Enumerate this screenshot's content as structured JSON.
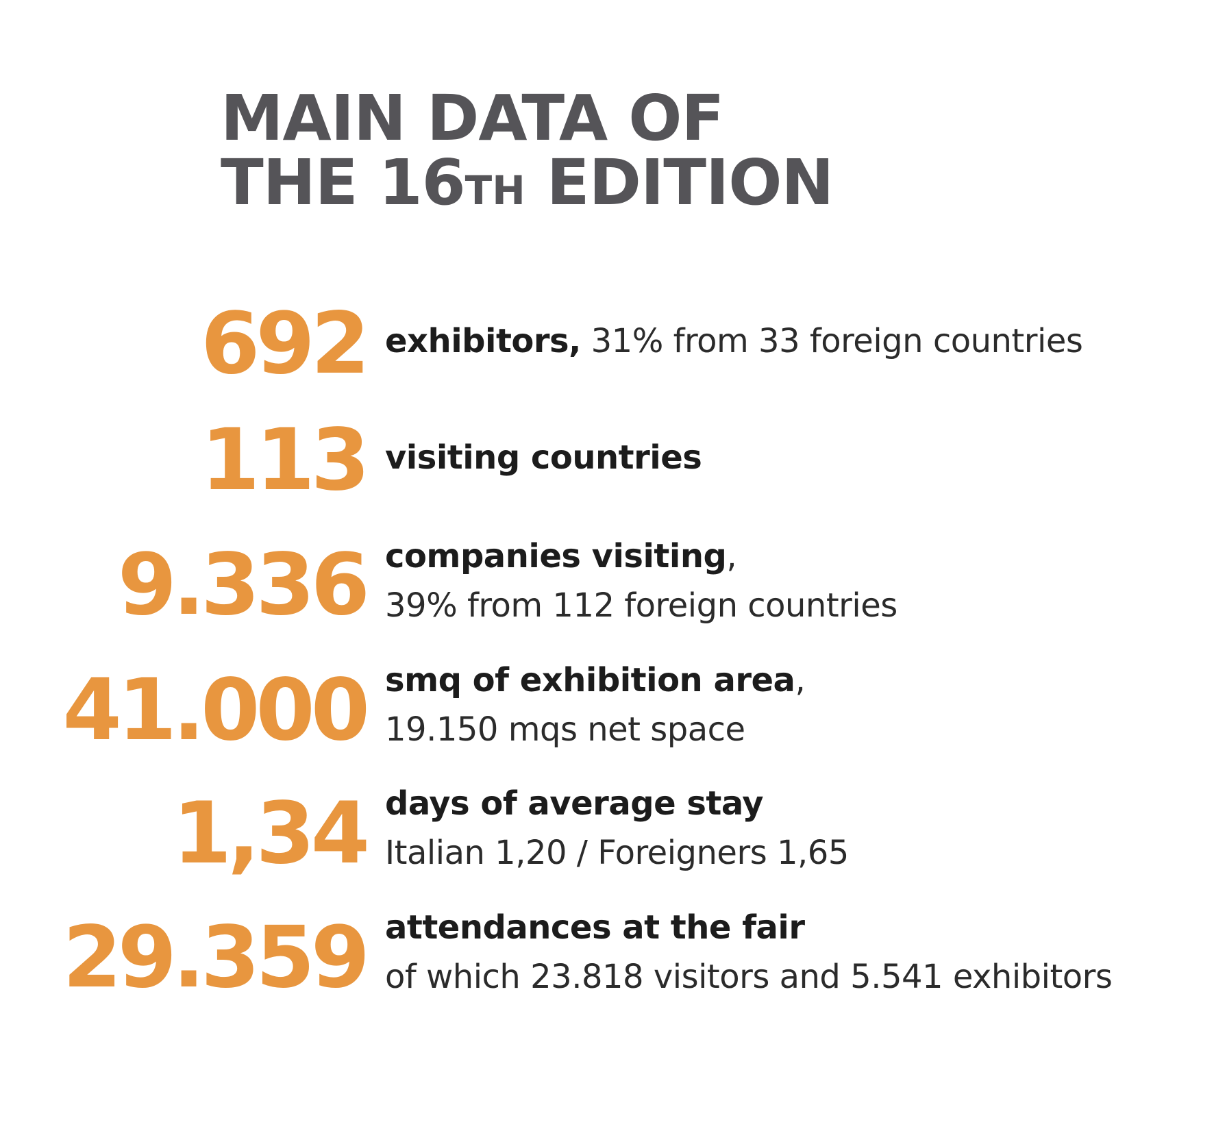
{
  "title": {
    "line1": "MAIN DATA OF",
    "line2_a": "THE 16",
    "line2_sup": "TH",
    "line2_b": " EDITION"
  },
  "stats": [
    {
      "number": "692",
      "bold": "exhibitors,",
      "rest": " 31% from 33 foreign countries",
      "second": ""
    },
    {
      "number": "113",
      "bold": "visiting countries",
      "rest": "",
      "second": ""
    },
    {
      "number": "9.336",
      "bold": "companies visiting",
      "rest": ",",
      "second": "39% from 112 foreign countries"
    },
    {
      "number": "41.000",
      "bold": "smq of exhibition area",
      "rest": ",",
      "second": "19.150 mqs net space"
    },
    {
      "number": "1,34",
      "bold": "days of average stay",
      "rest": "",
      "second": "Italian 1,20 / Foreigners 1,65"
    },
    {
      "number": "29.359",
      "bold": "attendances at the fair",
      "rest": "",
      "second": "of which 23.818 visitors and 5.541 exhibitors"
    }
  ],
  "colors": {
    "accent": "#e8963f",
    "title": "#555458",
    "text": "#252525"
  }
}
